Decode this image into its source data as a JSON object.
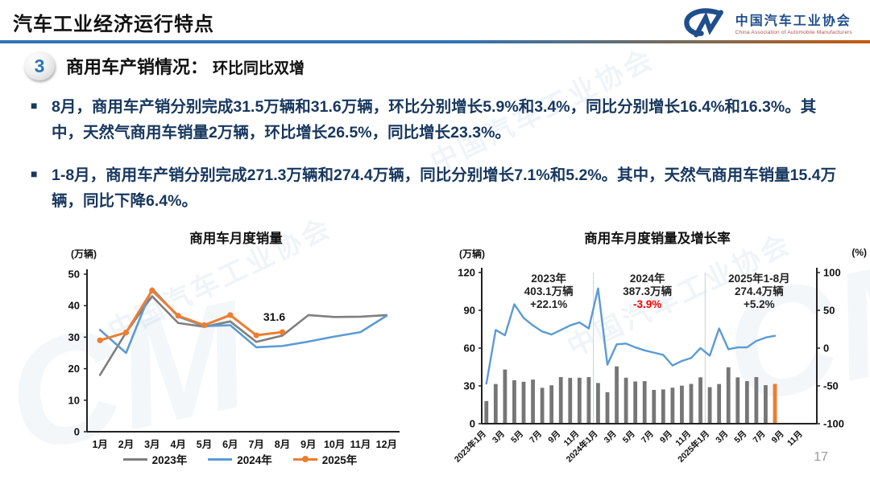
{
  "header": {
    "title": "汽车工业经济运行特点",
    "logo": {
      "monogram": "CM",
      "org_cn": "中国汽车工业协会",
      "org_en": "China Association of Automobile Manufacturers"
    }
  },
  "section": {
    "number": "3",
    "title": "商用车产销情况：",
    "subtitle": "环比同比双增"
  },
  "bullets": [
    {
      "text": "8月，商用车产销分别完成31.5万辆和31.6万辆，环比分别增长5.9%和3.4%，同比分别增长16.4%和16.3%。其中，天然气商用车销量2万辆，环比增长26.5%，同比增长23.3%。"
    },
    {
      "text": "1-8月，商用车产销分别完成271.3万辆和274.4万辆，同比分别增长7.1%和5.2%。其中，天然气商用车销量15.4万辆，同比下降6.4%。"
    }
  ],
  "page_number": "17",
  "watermark_text": "中国汽车工业协会",
  "watermark_monogram": "CM",
  "colors": {
    "accent_blue": "#2e74b5",
    "rule_gradient_right": "#c55a11",
    "body_text": "#17375e",
    "logo_blue": "#1f4e8c",
    "negative_red": "#ff0000",
    "bar_gray": "#767676",
    "bar_highlight": "#ed7d31"
  },
  "chart_data": [
    {
      "type": "line",
      "title": "商用车月度销量",
      "unit": "(万辆)",
      "categories": [
        "1月",
        "2月",
        "3月",
        "4月",
        "5月",
        "6月",
        "7月",
        "8月",
        "9月",
        "10月",
        "11月",
        "12月"
      ],
      "ylim": [
        0,
        50
      ],
      "yticks": [
        0,
        10,
        20,
        30,
        40,
        50
      ],
      "grid": false,
      "legend_position": "bottom",
      "series": [
        {
          "name": "2023年",
          "color": "#7f7f7f",
          "marker": false,
          "values": [
            18,
            31.5,
            43,
            34.5,
            33.3,
            35,
            28.5,
            30.5,
            37,
            36.4,
            36.5,
            37
          ]
        },
        {
          "name": "2024年",
          "color": "#5b9bd5",
          "marker": false,
          "values": [
            32.3,
            25,
            45.5,
            36.5,
            33.5,
            33.8,
            26.8,
            27.2,
            28.6,
            30.2,
            31.6,
            36.8
          ]
        },
        {
          "name": "2025年",
          "color": "#ed7d31",
          "marker": true,
          "values": [
            29,
            31.5,
            44.8,
            36.8,
            33.8,
            37,
            30.6,
            31.6
          ]
        }
      ],
      "point_label": {
        "text": "31.6",
        "series_index": 2,
        "month_index": 7
      }
    },
    {
      "type": "bar+line",
      "title": "商用车月度销量及增长率",
      "unit_left": "(万辆)",
      "unit_right": "(%)",
      "ylim_left": [
        0,
        120
      ],
      "yticks_left": [
        0,
        30,
        60,
        90,
        120
      ],
      "ylim_right": [
        -100,
        100
      ],
      "yticks_right": [
        -100,
        -50,
        0,
        50,
        100
      ],
      "months_total": 36,
      "x_labels": [
        "2023年1月",
        "3月",
        "5月",
        "7月",
        "9月",
        "11月",
        "2024年1月",
        "3月",
        "5月",
        "7月",
        "9月",
        "11月",
        "2025年1月",
        "3月",
        "5月",
        "7月",
        "9月",
        "11月"
      ],
      "separators_after_month": [
        12,
        24
      ],
      "bars": {
        "name": "月度销量",
        "color": "#767676",
        "highlight_color": "#ed7d31",
        "highlight_index": 31,
        "values": [
          18,
          31.5,
          43,
          34.5,
          33.3,
          35,
          28.5,
          30.5,
          37,
          36.4,
          36.5,
          37,
          32.3,
          25,
          45.5,
          36.5,
          33.5,
          33.8,
          26.8,
          27.2,
          28.6,
          30.2,
          31.6,
          36.8,
          29,
          31.5,
          44.8,
          36.8,
          33.8,
          37,
          30.6,
          31.6
        ]
      },
      "line": {
        "name": "增长率",
        "color": "#5b9bd5",
        "values": [
          -47,
          24,
          17,
          58,
          40,
          30,
          22,
          18,
          24,
          30,
          34,
          26,
          79,
          -22,
          5,
          6,
          1,
          -3,
          -6,
          -9,
          -23,
          -17,
          -13,
          0,
          -10,
          26,
          -1.5,
          1,
          1,
          9.5,
          14,
          16.3
        ]
      },
      "annotations": [
        {
          "slot_center": 7.2,
          "lines": [
            "2023年",
            "403.1万辆",
            "+22.1%"
          ],
          "highlight_line": -1
        },
        {
          "slot_center": 17.8,
          "lines": [
            "2024年",
            "387.3万辆",
            "-3.9%"
          ],
          "highlight_line": 2
        },
        {
          "slot_center": 29.8,
          "lines": [
            "2025年1-8月",
            "274.4万辆",
            "+5.2%"
          ],
          "highlight_line": -1
        }
      ],
      "annotation_highlight_color": "#ff0000"
    }
  ]
}
